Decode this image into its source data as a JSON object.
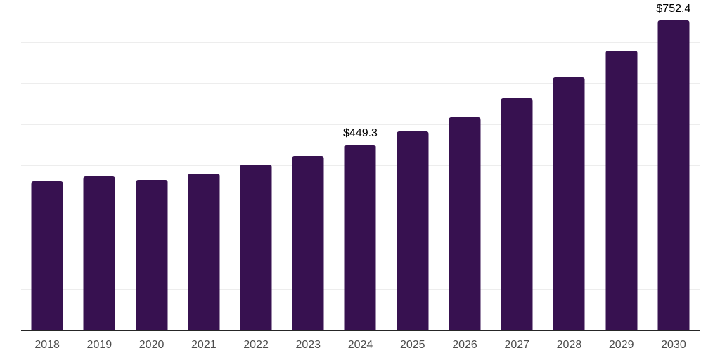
{
  "chart_data": {
    "type": "bar",
    "title": "",
    "xlabel": "",
    "ylabel": "",
    "categories": [
      "2018",
      "2019",
      "2020",
      "2021",
      "2022",
      "2023",
      "2024",
      "2025",
      "2026",
      "2027",
      "2028",
      "2029",
      "2030"
    ],
    "values": [
      360,
      372,
      364,
      379,
      401,
      423,
      449.3,
      482,
      517,
      562,
      614,
      679,
      752.4
    ],
    "point_labels": [
      "",
      "",
      "",
      "",
      "",
      "",
      "$449.3",
      "",
      "",
      "",
      "",
      "",
      "$752.4"
    ],
    "ylim": [
      0,
      800
    ],
    "gridline_step": 100,
    "grid": "horizontal-only",
    "y_axis_tick_labels_visible": false,
    "legend": "none"
  },
  "colors": {
    "bar": "#371150",
    "axis_line": "#262626",
    "gridline": "#ededed",
    "data_label": "#000000",
    "tick_label": "#4d4d4d",
    "background": "#ffffff"
  }
}
